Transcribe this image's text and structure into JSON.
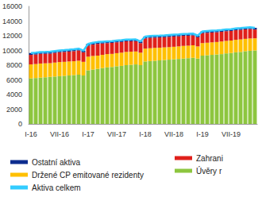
{
  "chart_data": {
    "type": "bar",
    "stacked": true,
    "grid": false,
    "legend": "bottom",
    "categories": [
      "I-16",
      null,
      null,
      null,
      null,
      null,
      "VII-16",
      null,
      null,
      null,
      null,
      null,
      "I-17",
      null,
      null,
      null,
      null,
      null,
      "VII-17",
      null,
      null,
      null,
      null,
      null,
      "I-18",
      null,
      null,
      null,
      null,
      null,
      "VII-18",
      null,
      null,
      null,
      null,
      null,
      "I-19",
      null,
      null,
      null,
      null,
      null,
      "VII-19",
      null,
      null,
      null,
      null,
      null
    ],
    "ylim": [
      0,
      16000
    ],
    "yticks": [
      0,
      2000,
      4000,
      6000,
      8000,
      10000,
      12000,
      14000,
      16000
    ],
    "series": [
      {
        "name": "Ostatní aktiva",
        "type": "bar",
        "color": "#0d2d8f",
        "values": [
          250,
          250,
          250,
          250,
          250,
          250,
          250,
          250,
          250,
          250,
          250,
          230,
          250,
          250,
          250,
          250,
          250,
          250,
          250,
          250,
          250,
          250,
          250,
          230,
          250,
          250,
          250,
          250,
          250,
          250,
          250,
          250,
          250,
          250,
          250,
          230,
          250,
          250,
          250,
          250,
          250,
          250,
          250,
          250,
          250,
          250,
          250,
          230
        ]
      },
      {
        "name": "Zahrani",
        "type": "bar",
        "color": "#e0201b",
        "values": [
          1300,
          1300,
          1320,
          1300,
          1300,
          1320,
          1340,
          1350,
          1350,
          1380,
          1400,
          1300,
          1500,
          1550,
          1600,
          1550,
          1500,
          1500,
          1480,
          1450,
          1450,
          1420,
          1400,
          1300,
          1400,
          1420,
          1400,
          1400,
          1380,
          1400,
          1400,
          1380,
          1380,
          1360,
          1350,
          1250,
          1350,
          1350,
          1340,
          1330,
          1320,
          1320,
          1300,
          1300,
          1300,
          1280,
          1280,
          1200
        ]
      },
      {
        "name": "Držené CP emitované rezidenty",
        "type": "bar",
        "color": "#ffc000",
        "values": [
          1900,
          1900,
          1920,
          1900,
          1880,
          1900,
          1920,
          1900,
          1900,
          1880,
          1900,
          1850,
          1850,
          1850,
          1800,
          1800,
          1800,
          1780,
          1780,
          1800,
          1800,
          1780,
          1760,
          1700,
          1750,
          1750,
          1750,
          1720,
          1720,
          1700,
          1700,
          1700,
          1720,
          1700,
          1700,
          1650,
          1700,
          1700,
          1700,
          1700,
          1720,
          1700,
          1700,
          1700,
          1700,
          1680,
          1680,
          1650
        ]
      },
      {
        "name": "Úvěry r",
        "type": "bar",
        "color": "#8dc63f",
        "values": [
          6200,
          6250,
          6300,
          6350,
          6400,
          6450,
          6500,
          6550,
          6600,
          6650,
          6700,
          6600,
          7300,
          7400,
          7500,
          7600,
          7700,
          7750,
          7850,
          7900,
          8000,
          8050,
          8100,
          8000,
          8500,
          8550,
          8600,
          8650,
          8700,
          8750,
          8800,
          8850,
          8900,
          8950,
          9000,
          8900,
          9300,
          9350,
          9400,
          9450,
          9500,
          9600,
          9650,
          9750,
          9800,
          9900,
          9950,
          10000
        ]
      },
      {
        "name": "Aktiva celkem",
        "type": "line",
        "color": "#33ccff",
        "values": [
          9650,
          9700,
          9790,
          9800,
          9830,
          9920,
          10010,
          10050,
          10100,
          10160,
          10250,
          9980,
          10900,
          11050,
          11150,
          11200,
          11250,
          11280,
          11360,
          11400,
          11500,
          11500,
          11510,
          11230,
          11900,
          11970,
          12000,
          12020,
          12050,
          12100,
          12150,
          12180,
          12250,
          12260,
          12300,
          12030,
          12600,
          12650,
          12690,
          12730,
          12790,
          12870,
          12900,
          13000,
          13050,
          13110,
          13160,
          13080
        ]
      }
    ]
  }
}
